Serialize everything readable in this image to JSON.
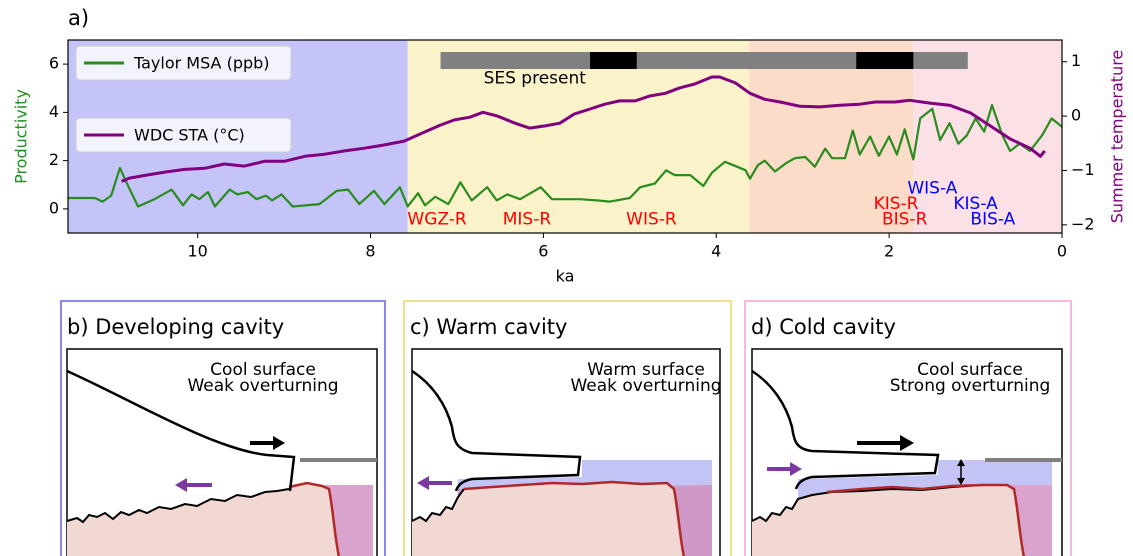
{
  "chart_data": {
    "type": "line",
    "panel_label": "a)",
    "x_label": "ka",
    "y_label": "Productivity",
    "y2_label": "Summer temperature",
    "xlim": [
      11.5,
      0
    ],
    "xticks": [
      10,
      8,
      6,
      4,
      2,
      0
    ],
    "ylim": [
      -1,
      7
    ],
    "yticks": [
      0,
      2,
      4,
      6
    ],
    "y2lim": [
      -2.15,
      1.4
    ],
    "y2ticks": [
      {
        "value": -2,
        "label": "−2"
      },
      {
        "value": -1,
        "label": "−1"
      },
      0,
      1
    ],
    "y_label_color": "#1f8f1f",
    "y2_label_color": "#800080",
    "legend": "upper left",
    "regions": [
      {
        "start": 11.5,
        "end": 7.57,
        "color": "#c4c4f8"
      },
      {
        "start": 7.57,
        "end": 3.62,
        "color": "#faf2c8"
      },
      {
        "start": 3.62,
        "end": 1.72,
        "color": "#fbdcc8"
      },
      {
        "start": 1.72,
        "end": 0,
        "color": "#fbe0e6"
      }
    ],
    "ses_bar": [
      {
        "start": 7.19,
        "end": 1.09,
        "color": "#808080"
      },
      {
        "start": 5.46,
        "end": 4.92,
        "color": "#000000"
      },
      {
        "start": 2.38,
        "end": 1.72,
        "color": "#000000"
      }
    ],
    "annotations": [
      {
        "text": "SES present",
        "x": 6.1,
        "y": 5.4,
        "color": "#000000"
      },
      {
        "text": "WGZ-R",
        "x": 7.23,
        "y": -0.45,
        "color": "#ff0000"
      },
      {
        "text": "MIS-R",
        "x": 6.19,
        "y": -0.45,
        "color": "#ff0000"
      },
      {
        "text": "WIS-R",
        "x": 4.75,
        "y": -0.45,
        "color": "#ff0000"
      },
      {
        "text": "KIS-R",
        "x": 1.92,
        "y": 0.2,
        "color": "#ff0000"
      },
      {
        "text": "BIS-R",
        "x": 1.82,
        "y": -0.45,
        "color": "#ff0000"
      },
      {
        "text": "WIS-A",
        "x": 1.5,
        "y": 0.85,
        "color": "#0000ff"
      },
      {
        "text": "KIS-A",
        "x": 1.0,
        "y": 0.2,
        "color": "#0000ff"
      },
      {
        "text": "BIS-A",
        "x": 0.8,
        "y": -0.45,
        "color": "#0000ff"
      }
    ],
    "series": [
      {
        "name": "Taylor MSA (ppb)",
        "color": "#2a8c1e",
        "axis": "y",
        "x": [
          11.5,
          11.19,
          11.1,
          11.0,
          10.9,
          10.81,
          10.69,
          10.5,
          10.3,
          10.17,
          10.07,
          9.98,
          9.88,
          9.8,
          9.63,
          9.54,
          9.42,
          9.32,
          9.21,
          9.14,
          9.03,
          8.9,
          8.59,
          8.39,
          8.26,
          8.13,
          7.96,
          7.84,
          7.66,
          7.57,
          7.45,
          7.37,
          7.25,
          7.1,
          6.96,
          6.83,
          6.65,
          6.54,
          6.42,
          6.27,
          6.03,
          5.9,
          5.58,
          5.38,
          5.23,
          5.0,
          4.88,
          4.71,
          4.58,
          4.48,
          4.3,
          4.15,
          4.05,
          3.9,
          3.76,
          3.66,
          3.61,
          3.52,
          3.44,
          3.32,
          3.19,
          3.09,
          2.97,
          2.86,
          2.74,
          2.66,
          2.51,
          2.42,
          2.34,
          2.22,
          2.12,
          2.0,
          1.91,
          1.82,
          1.72,
          1.64,
          1.5,
          1.41,
          1.3,
          1.2,
          1.1,
          1.0,
          0.9,
          0.81,
          0.69,
          0.6,
          0.49,
          0.37,
          0.23,
          0.12,
          0.0
        ],
        "values": [
          0.45,
          0.45,
          0.3,
          0.55,
          1.7,
          1.0,
          0.1,
          0.4,
          0.8,
          0.15,
          0.6,
          0.4,
          0.7,
          0.1,
          0.8,
          0.6,
          0.7,
          0.4,
          0.55,
          0.35,
          0.6,
          0.1,
          0.2,
          0.75,
          0.8,
          0.2,
          0.75,
          0.2,
          0.9,
          0.1,
          0.65,
          0.15,
          0.5,
          0.2,
          1.1,
          0.35,
          0.9,
          0.35,
          0.6,
          0.4,
          0.9,
          0.4,
          0.4,
          0.35,
          0.3,
          0.45,
          0.9,
          1.05,
          1.6,
          1.4,
          1.4,
          0.95,
          1.5,
          1.95,
          1.75,
          1.6,
          1.25,
          1.8,
          2.0,
          1.55,
          1.9,
          2.1,
          2.15,
          1.75,
          2.5,
          2.1,
          2.1,
          3.25,
          2.25,
          3.0,
          2.2,
          3.0,
          2.25,
          3.3,
          2.05,
          3.75,
          4.15,
          2.85,
          3.55,
          2.7,
          3.05,
          3.75,
          3.2,
          4.3,
          3.05,
          2.4,
          2.7,
          2.4,
          3.05,
          3.75,
          3.4
        ]
      },
      {
        "name": "WDC STA (°C)",
        "color": "#800080",
        "axis": "y2",
        "x": [
          10.88,
          10.79,
          10.61,
          10.38,
          10.15,
          9.92,
          9.69,
          9.46,
          9.22,
          8.99,
          8.76,
          8.53,
          8.3,
          8.07,
          7.84,
          7.61,
          7.43,
          7.2,
          7.03,
          6.85,
          6.7,
          6.53,
          6.33,
          6.16,
          5.98,
          5.81,
          5.64,
          5.46,
          5.29,
          5.12,
          4.94,
          4.77,
          4.59,
          4.42,
          4.25,
          4.05,
          3.96,
          3.78,
          3.61,
          3.44,
          3.26,
          3.03,
          2.8,
          2.57,
          2.34,
          2.16,
          1.93,
          1.76,
          1.53,
          1.3,
          1.06,
          0.83,
          0.6,
          0.37,
          0.25,
          0.2
        ],
        "values": [
          -1.2,
          -1.14,
          -1.09,
          -1.03,
          -0.98,
          -0.96,
          -0.88,
          -0.92,
          -0.83,
          -0.83,
          -0.74,
          -0.7,
          -0.64,
          -0.59,
          -0.53,
          -0.46,
          -0.33,
          -0.17,
          -0.07,
          -0.02,
          0.07,
          0.0,
          -0.13,
          -0.22,
          -0.18,
          -0.13,
          0.04,
          0.13,
          0.22,
          0.28,
          0.28,
          0.37,
          0.42,
          0.52,
          0.59,
          0.72,
          0.72,
          0.61,
          0.42,
          0.31,
          0.26,
          0.18,
          0.17,
          0.2,
          0.22,
          0.26,
          0.26,
          0.29,
          0.24,
          0.2,
          0.06,
          -0.18,
          -0.42,
          -0.59,
          -0.74,
          -0.64
        ]
      }
    ]
  },
  "panels": [
    {
      "title": "b) Developing cavity",
      "text": [
        "Cool surface",
        "Weak overturning"
      ]
    },
    {
      "title": "c) Warm cavity",
      "text": [
        "Warm surface",
        "Weak overturning"
      ]
    },
    {
      "title": "d) Cold cavity",
      "text": [
        "Cool surface",
        "Strong overturning"
      ]
    }
  ]
}
